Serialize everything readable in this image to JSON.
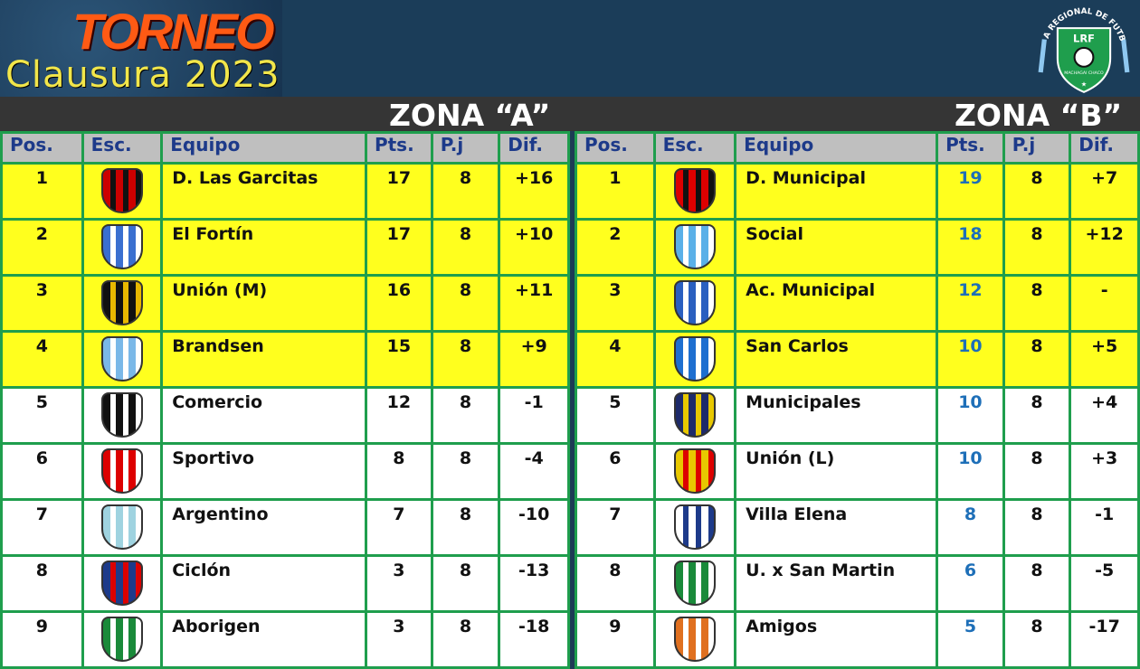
{
  "header": {
    "title_line1": "TORNEO",
    "title_line2": "Clausura 2023",
    "league_logo_text": "LIGA REGIONAL DE FUTBOL",
    "league_logo_abbr": "LRF",
    "league_logo_place": "MACHAGAI CHACO"
  },
  "columns": [
    "Pos.",
    "Esc.",
    "Equipo",
    "Pts.",
    "P.j",
    "Dif."
  ],
  "colors": {
    "qualified": "#ffff1e",
    "grid": "#1f9e4d",
    "header_bg": "#bfbfbf",
    "header_text": "#1d3a8a",
    "zona_b_points": "#1e6fb8"
  },
  "zones": [
    {
      "name": "ZONA “A”",
      "rows": [
        {
          "pos": "1",
          "team": "D. Las Garcitas",
          "pts": "17",
          "pj": "8",
          "dif": "+16",
          "crest": [
            "#c00",
            "#111"
          ]
        },
        {
          "pos": "2",
          "team": "El Fortín",
          "pts": "17",
          "pj": "8",
          "dif": "+10",
          "crest": [
            "#3a6fd0",
            "#fff"
          ]
        },
        {
          "pos": "3",
          "team": "Unión (M)",
          "pts": "16",
          "pj": "8",
          "dif": "+11",
          "crest": [
            "#111",
            "#e8b800"
          ]
        },
        {
          "pos": "4",
          "team": "Brandsen",
          "pts": "15",
          "pj": "8",
          "dif": "+9",
          "crest": [
            "#7ab8e8",
            "#fff"
          ]
        },
        {
          "pos": "5",
          "team": "Comercio",
          "pts": "12",
          "pj": "8",
          "dif": "-1",
          "crest": [
            "#111",
            "#fff"
          ]
        },
        {
          "pos": "6",
          "team": "Sportivo",
          "pts": "8",
          "pj": "8",
          "dif": "-4",
          "crest": [
            "#d00",
            "#fff"
          ]
        },
        {
          "pos": "7",
          "team": "Argentino",
          "pts": "7",
          "pj": "8",
          "dif": "-10",
          "crest": [
            "#9fd3e0",
            "#fff"
          ]
        },
        {
          "pos": "8",
          "team": "Ciclón",
          "pts": "3",
          "pj": "8",
          "dif": "-13",
          "crest": [
            "#1d3a8a",
            "#d00"
          ]
        },
        {
          "pos": "9",
          "team": "Aborigen",
          "pts": "3",
          "pj": "8",
          "dif": "-18",
          "crest": [
            "#1a8a3a",
            "#fff"
          ]
        }
      ]
    },
    {
      "name": "ZONA “B”",
      "rows": [
        {
          "pos": "1",
          "team": "D. Municipal",
          "pts": "19",
          "pj": "8",
          "dif": "+7",
          "crest": [
            "#d00",
            "#111"
          ]
        },
        {
          "pos": "2",
          "team": "Social",
          "pts": "18",
          "pj": "8",
          "dif": "+12",
          "crest": [
            "#5ab0e8",
            "#fff"
          ]
        },
        {
          "pos": "3",
          "team": "Ac. Municipal",
          "pts": "12",
          "pj": "8",
          "dif": "-",
          "crest": [
            "#2a5fc0",
            "#fff"
          ]
        },
        {
          "pos": "4",
          "team": "San Carlos",
          "pts": "10",
          "pj": "8",
          "dif": "+5",
          "crest": [
            "#1e6fd0",
            "#fff"
          ]
        },
        {
          "pos": "5",
          "team": "Municipales",
          "pts": "10",
          "pj": "8",
          "dif": "+4",
          "crest": [
            "#1d2a6a",
            "#e8c800"
          ]
        },
        {
          "pos": "6",
          "team": "Unión (L)",
          "pts": "10",
          "pj": "8",
          "dif": "+3",
          "crest": [
            "#e8c800",
            "#d00"
          ]
        },
        {
          "pos": "7",
          "team": "Villa Elena",
          "pts": "8",
          "pj": "8",
          "dif": "-1",
          "crest": [
            "#fff",
            "#1d3a8a"
          ]
        },
        {
          "pos": "8",
          "team": "U. x San Martin",
          "pts": "6",
          "pj": "8",
          "dif": "-5",
          "crest": [
            "#1a8a3a",
            "#fff"
          ]
        },
        {
          "pos": "9",
          "team": "Amigos",
          "pts": "5",
          "pj": "8",
          "dif": "-17",
          "crest": [
            "#e07020",
            "#fff"
          ]
        }
      ]
    }
  ]
}
